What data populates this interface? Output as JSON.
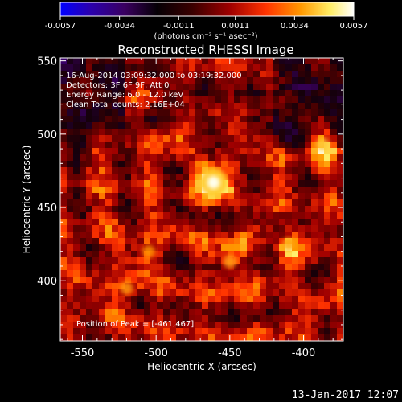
{
  "chart_data": {
    "type": "heatmap",
    "title": "Reconstructed RHESSI Image",
    "colorbar": {
      "ticks": [
        "-0.0057",
        "-0.0034",
        "-0.0011",
        "0.0011",
        "0.0034",
        "0.0057"
      ],
      "tick_values": [
        -0.0057,
        -0.0034,
        -0.0011,
        0.0011,
        0.0034,
        0.0057
      ],
      "range": [
        -0.0057,
        0.0057
      ],
      "unit": "(photons cm⁻² s⁻¹ asec⁻²)",
      "colors": [
        "#0000ff",
        "#2a00b0",
        "#3a0060",
        "#000000",
        "#5a0000",
        "#a00000",
        "#ff3300",
        "#ff9900",
        "#ffee66",
        "#ffffff"
      ]
    },
    "xlabel": "Heliocentric X (arcsec)",
    "ylabel": "Heliocentric Y (arcsec)",
    "xlim": [
      -565,
      -373
    ],
    "ylim": [
      359,
      552
    ],
    "xticks": [
      "-550",
      "-500",
      "-450",
      "-400"
    ],
    "xtick_values": [
      -550,
      -500,
      -450,
      -400
    ],
    "yticks": [
      "400",
      "450",
      "500",
      "550"
    ],
    "ytick_values": [
      400,
      450,
      500,
      550
    ],
    "peak": {
      "x": -461,
      "y": 467,
      "value": 0.0057
    },
    "annotations": [
      "16-Aug-2014 03:09:32.000 to 03:19:32.000",
      "Detectors: 3F 6F 9F, Att 0",
      "Energy Range: 6.0 - 12.0 keV",
      "Clean    Total counts: 2.16E+04"
    ],
    "peak_label": "Position of Peak = [-461,467]",
    "hot_spots": [
      {
        "x": -461,
        "y": 467,
        "value": 0.0057
      },
      {
        "x": -387,
        "y": 493,
        "value": 0.004
      },
      {
        "x": -450,
        "y": 413,
        "value": 0.0026
      },
      {
        "x": -410,
        "y": 425,
        "value": 0.0024
      },
      {
        "x": -520,
        "y": 395,
        "value": 0.0022
      },
      {
        "x": -505,
        "y": 420,
        "value": 0.002
      }
    ]
  },
  "footer": {
    "timestamp": "13-Jan-2017 12:07"
  }
}
